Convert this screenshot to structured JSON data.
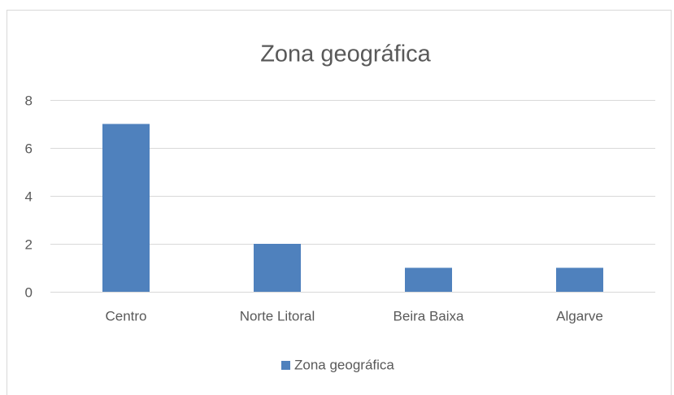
{
  "chart_data": {
    "type": "bar",
    "title": "Zona geográfica",
    "categories": [
      "Centro",
      "Norte Litoral",
      "Beira Baixa",
      "Algarve"
    ],
    "series": [
      {
        "name": "Zona geográfica",
        "color": "#4f81bd",
        "values": [
          7,
          2,
          1,
          1
        ]
      }
    ],
    "ylim": [
      0,
      8
    ],
    "yticks": [
      0,
      2,
      4,
      6,
      8
    ],
    "grid": true,
    "legend": "bottom"
  }
}
